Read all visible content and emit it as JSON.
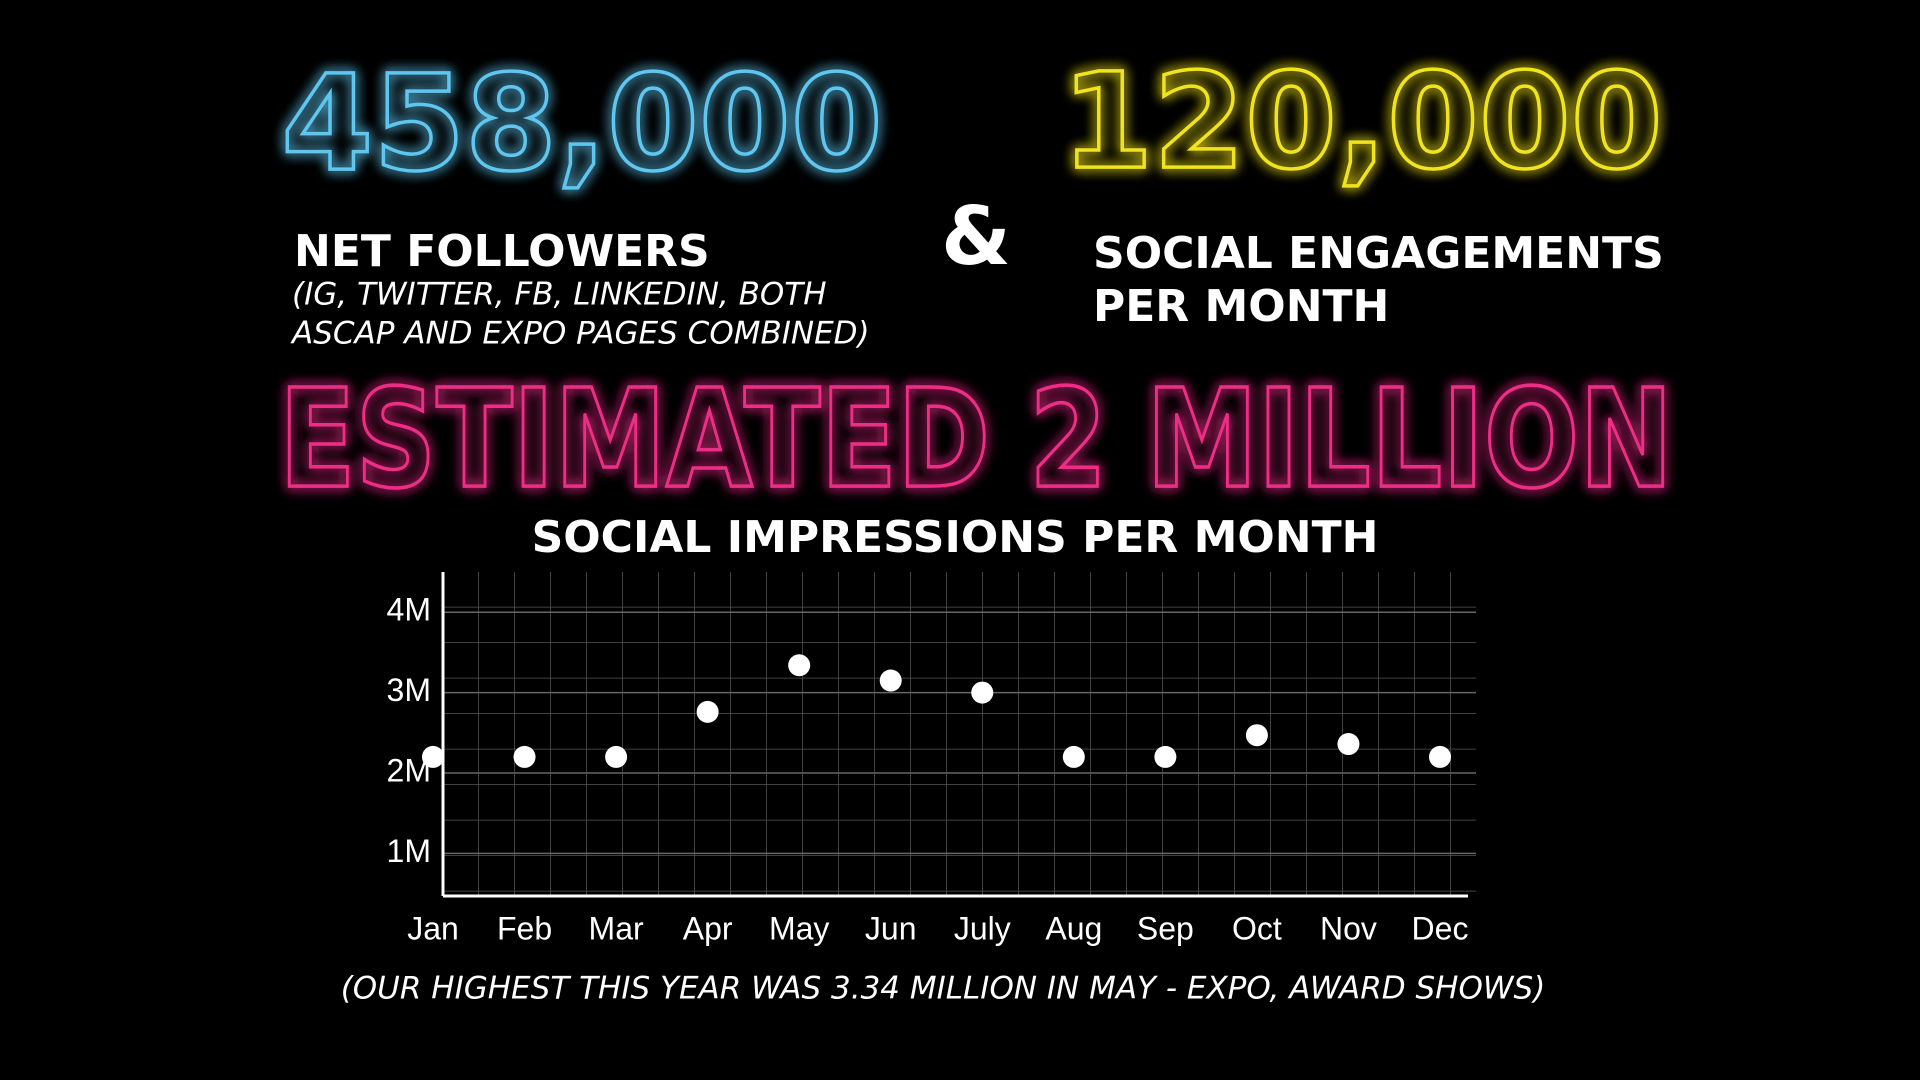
{
  "stats": {
    "followers": {
      "value": "458,000",
      "label": "NET FOLLOWERS",
      "note_lines": [
        "(IG, TWITTER, FB, LINKEDIN, BOTH",
        "ASCAP AND EXPO PAGES COMBINED)"
      ]
    },
    "ampersand": "&",
    "engagements": {
      "value": "120,000",
      "label_lines": [
        "SOCIAL ENGAGEMENTS",
        "PER MONTH"
      ]
    },
    "impressions": {
      "value": "ESTIMATED 2 MILLION"
    }
  },
  "chart_data": {
    "type": "scatter",
    "title": "SOCIAL IMPRESSIONS PER MONTH",
    "categories": [
      "Jan",
      "Feb",
      "Mar",
      "Apr",
      "May",
      "Jun",
      "July",
      "Aug",
      "Sep",
      "Oct",
      "Nov",
      "Dec"
    ],
    "values": [
      2.2,
      2.2,
      2.2,
      2.76,
      3.34,
      3.15,
      3.0,
      2.2,
      2.2,
      2.47,
      2.36,
      2.2
    ],
    "color": "#ffffff",
    "ylim": [
      0.47,
      4.5
    ],
    "yticks": [
      {
        "value": 1,
        "label": "1M"
      },
      {
        "value": 2,
        "label": "2M"
      },
      {
        "value": 3,
        "label": "3M"
      },
      {
        "value": 4,
        "label": "4M"
      }
    ],
    "grid": true,
    "footnote": "(OUR HIGHEST THIS YEAR WAS 3.34 MILLION IN MAY - EXPO, AWARD SHOWS)"
  }
}
